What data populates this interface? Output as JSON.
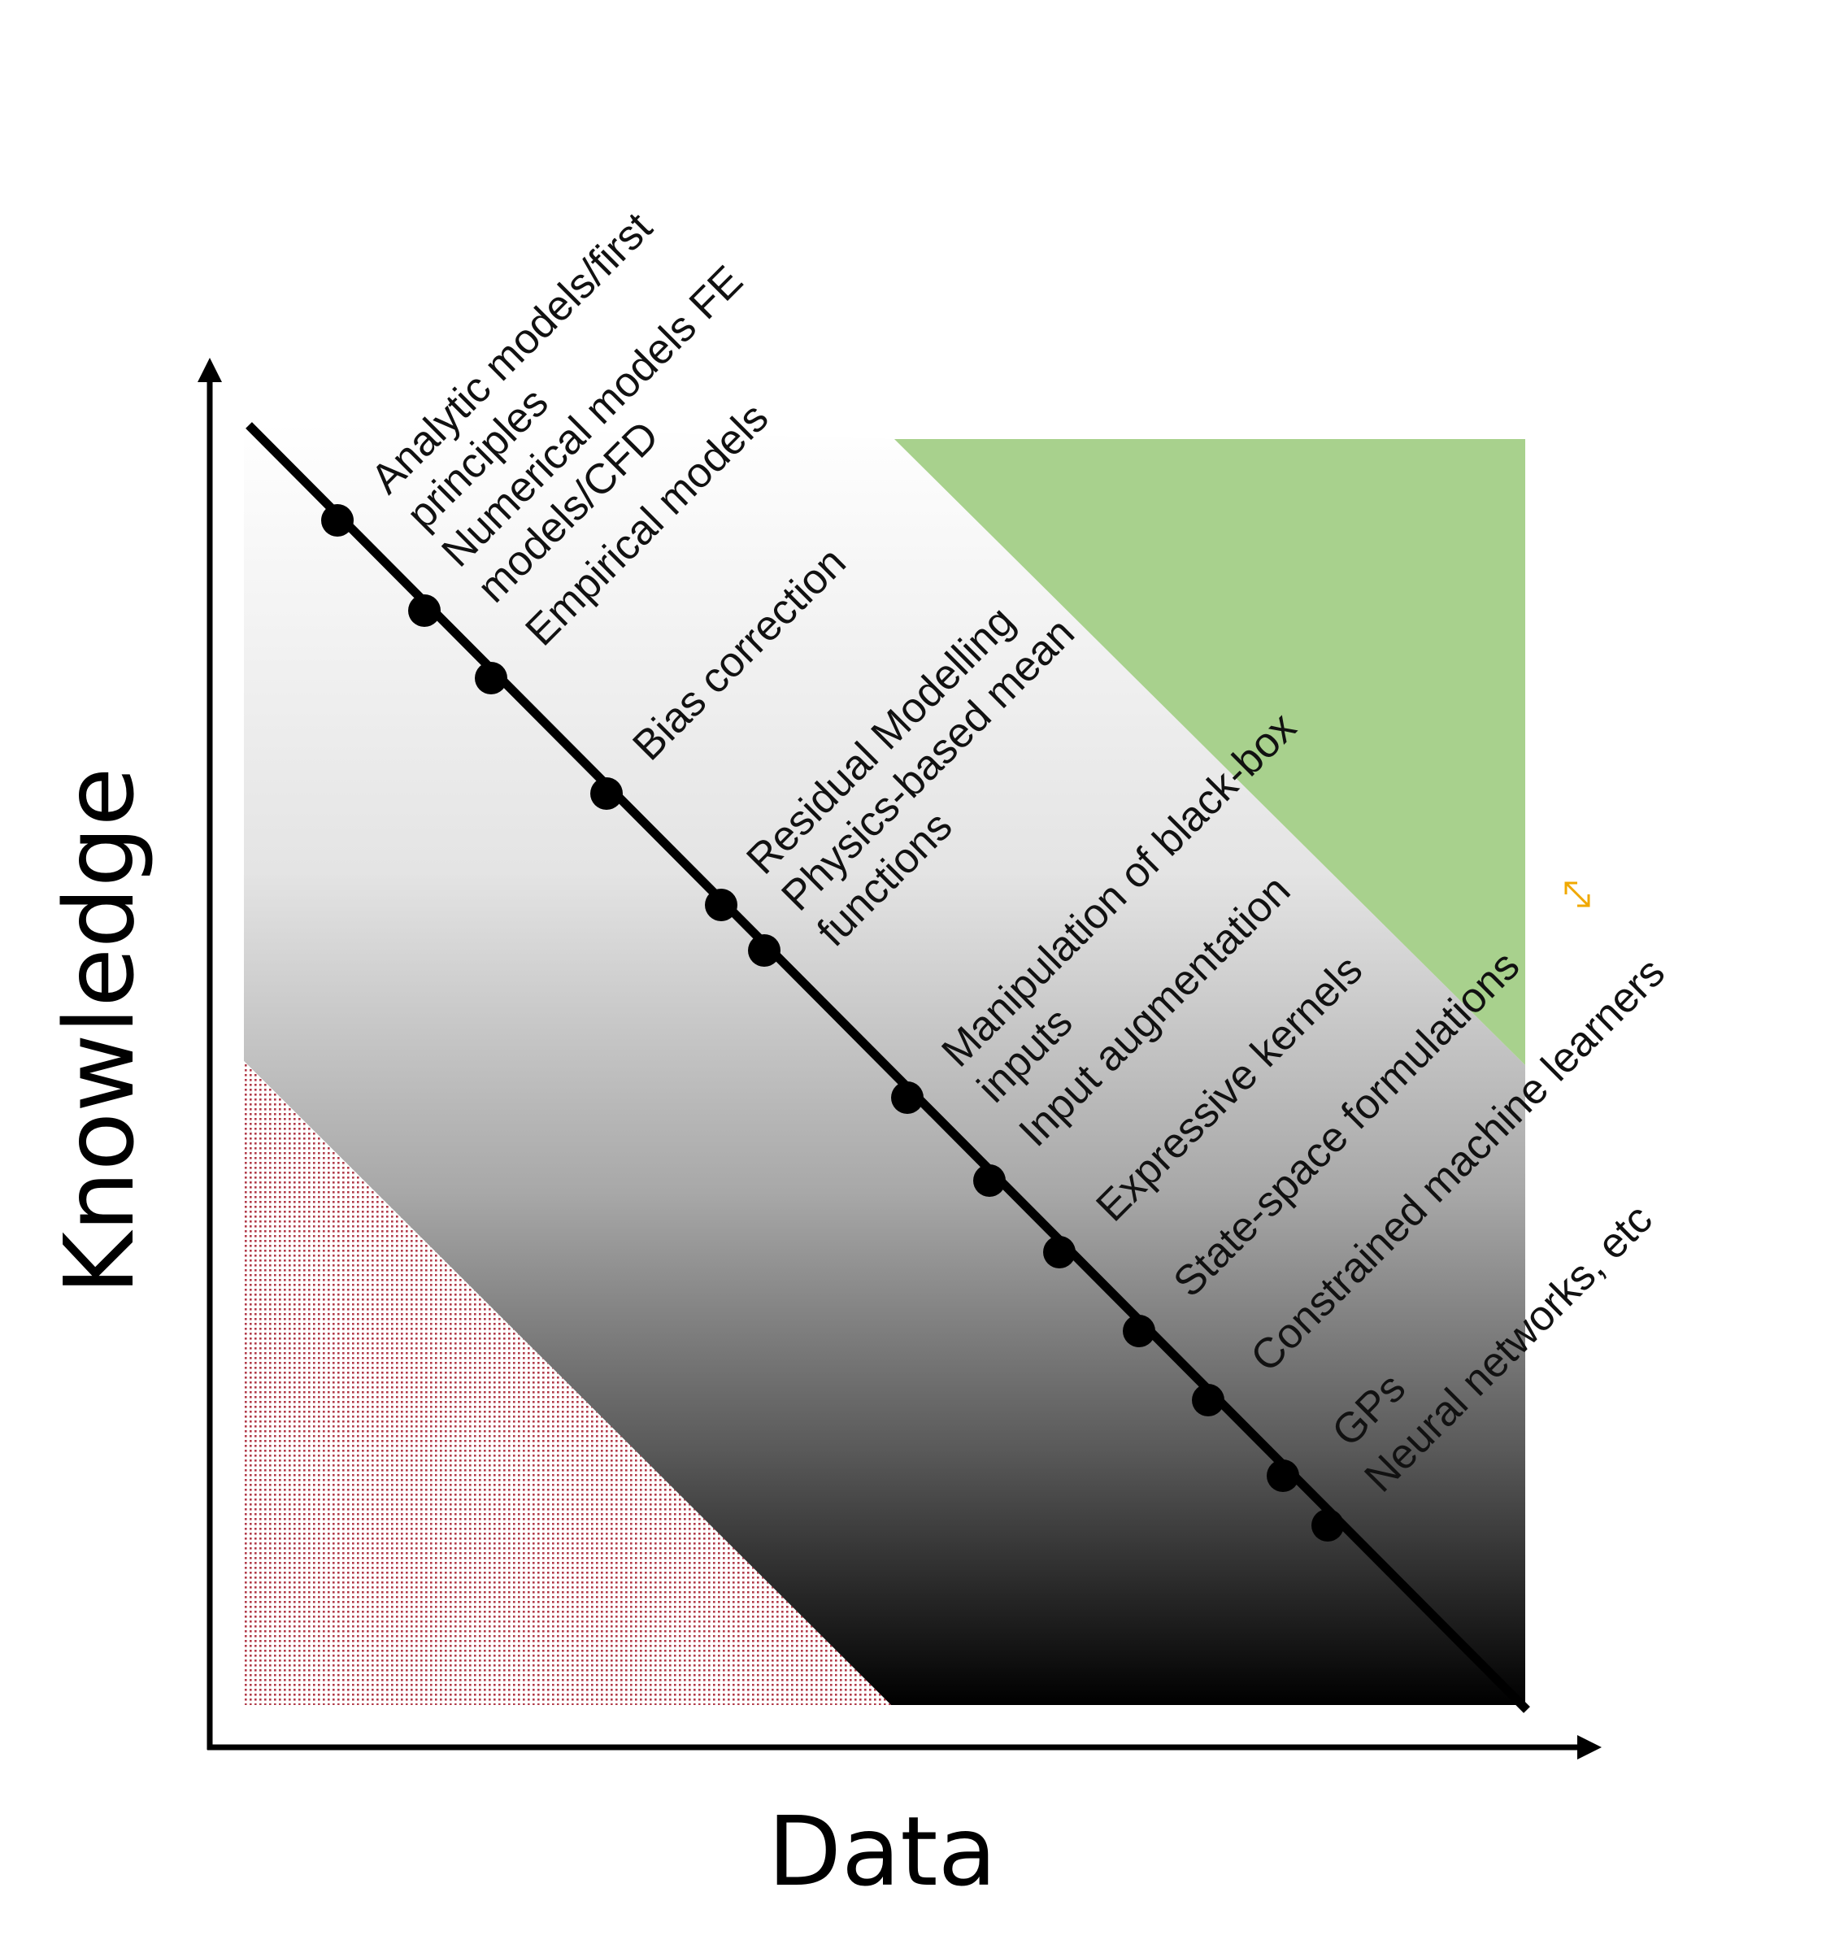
{
  "axes": {
    "x_label": "Data",
    "y_label": "Knowledge"
  },
  "colors": {
    "good_region": "#a8d18d",
    "bad_region": "#b23a48",
    "gradient_top": "#ffffff",
    "gradient_bottom": "#000000",
    "line": "#000000",
    "marker": "#000000",
    "resize_icon": "#f0a800"
  },
  "icons": {
    "resize_handle": "resize-arrows-icon"
  },
  "labels": [
    {
      "id": "analytic",
      "lines": [
        "Analytic models/first",
        "principles"
      ]
    },
    {
      "id": "numerical",
      "lines": [
        "Numerical models FE",
        "models/CFD"
      ]
    },
    {
      "id": "empirical",
      "lines": [
        "Empirical models"
      ]
    },
    {
      "id": "bias",
      "lines": [
        "Bias correction"
      ]
    },
    {
      "id": "residual",
      "lines": [
        "Residual Modelling"
      ]
    },
    {
      "id": "physics",
      "lines": [
        "Physics-based mean",
        "functions"
      ]
    },
    {
      "id": "manipulation",
      "lines": [
        "Manipulation of black-box",
        "inputs"
      ]
    },
    {
      "id": "input-aug",
      "lines": [
        "Input augmentation"
      ]
    },
    {
      "id": "kernels",
      "lines": [
        "Expressive kernels"
      ]
    },
    {
      "id": "state-space",
      "lines": [
        "State-space formulations"
      ]
    },
    {
      "id": "constrained",
      "lines": [
        "Constrained machine learners"
      ]
    },
    {
      "id": "gps",
      "lines": [
        "GPs"
      ]
    },
    {
      "id": "neural",
      "lines": [
        "Neural networks, etc"
      ]
    }
  ]
}
